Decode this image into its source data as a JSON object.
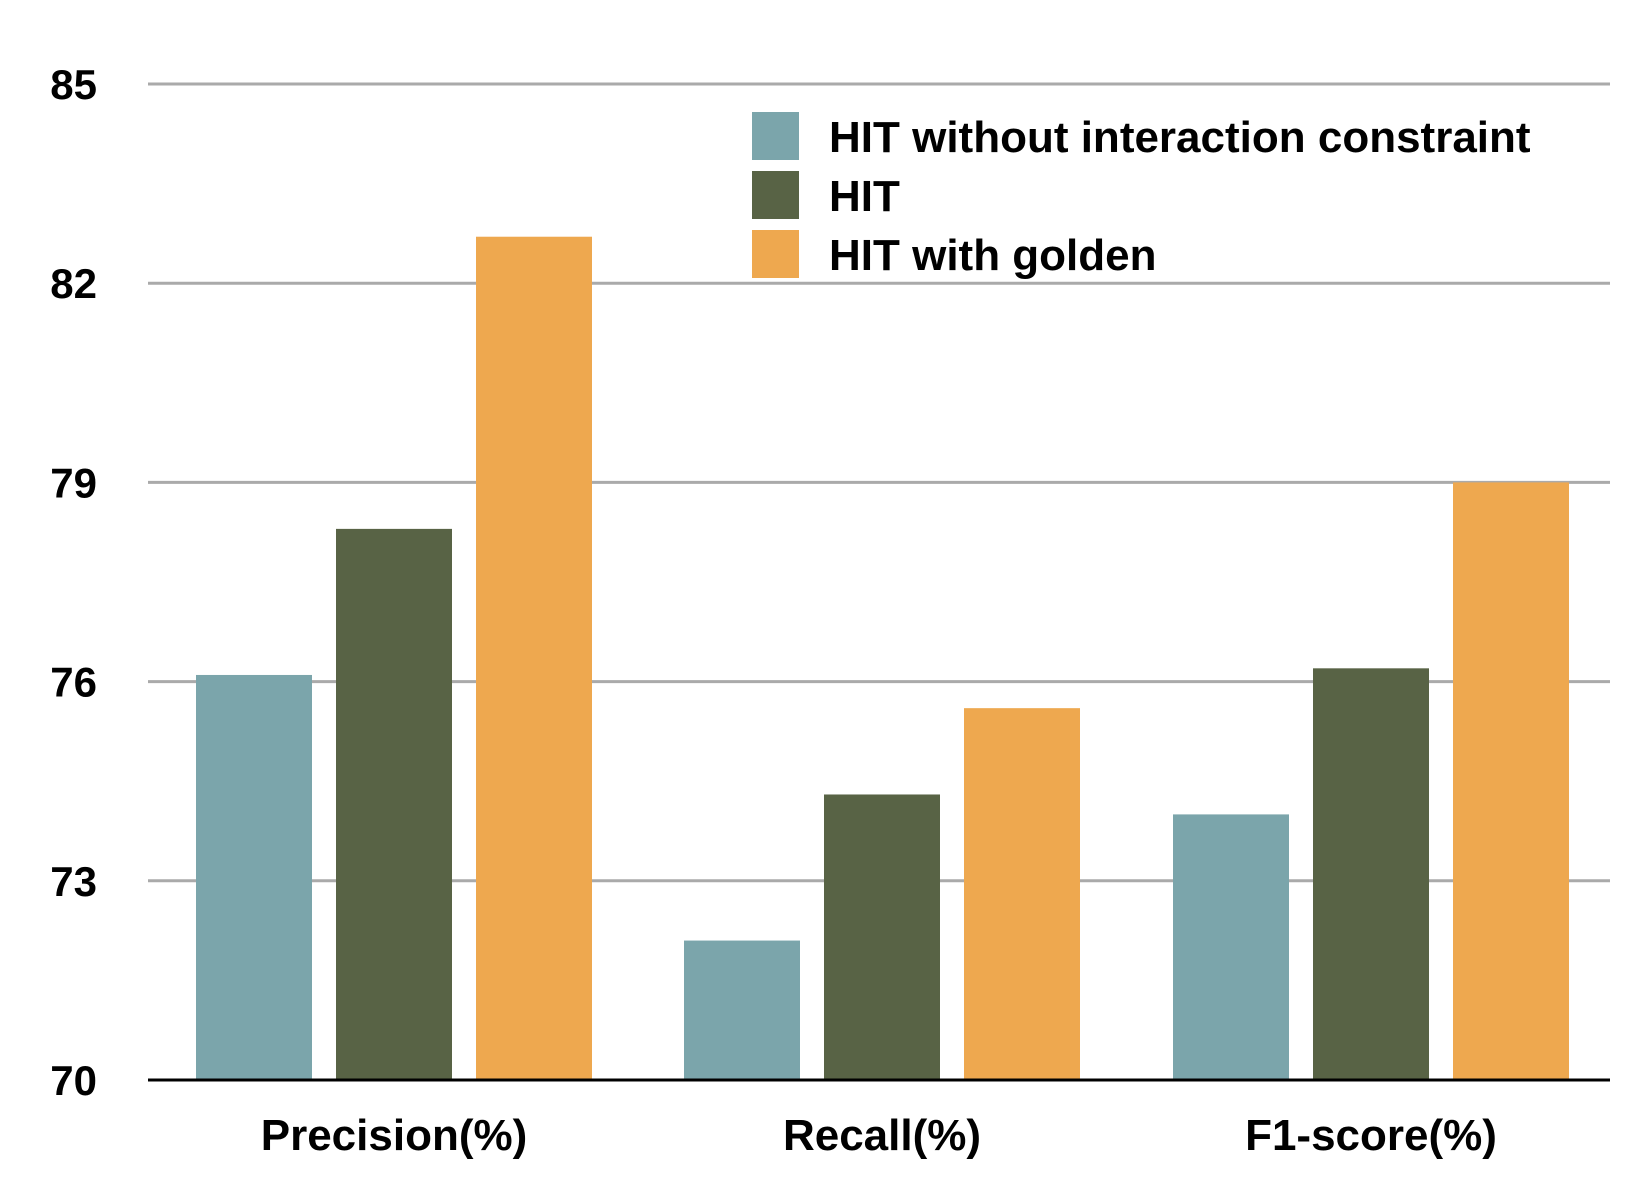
{
  "chart_data": {
    "type": "bar",
    "categories": [
      "Precision(%)",
      "Recall(%)",
      "F1-score(%)"
    ],
    "series": [
      {
        "name": "HIT without interaction constraint",
        "values": [
          76.1,
          72.1,
          74.0
        ],
        "color": "#7BA5AB"
      },
      {
        "name": "HIT",
        "values": [
          78.3,
          74.3,
          76.2
        ],
        "color": "#586345"
      },
      {
        "name": "HIT with golden",
        "values": [
          82.7,
          75.6,
          79.0
        ],
        "color": "#EEA84F"
      }
    ],
    "yticks": [
      70,
      73,
      76,
      79,
      82,
      85
    ],
    "ylim": [
      70,
      85
    ],
    "grid": true,
    "legend_position": "top-right",
    "title": "",
    "xlabel": "",
    "ylabel": ""
  }
}
